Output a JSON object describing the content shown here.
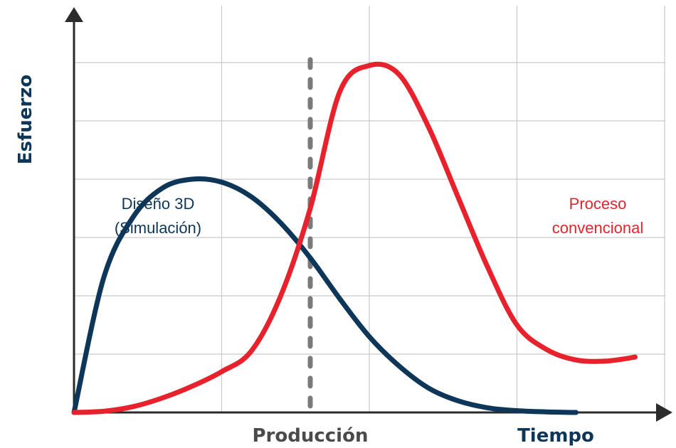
{
  "chart_data": {
    "type": "line",
    "title": "",
    "xlabel": "Tiempo",
    "ylabel": "Esfuerzo",
    "xlim": [
      0,
      10
    ],
    "ylim": [
      0,
      7
    ],
    "grid": true,
    "legend": "none",
    "marker": {
      "label": "Producción",
      "x": 4,
      "style": "dashed"
    },
    "series": [
      {
        "name": "Diseño 3D (Simulación)",
        "label_lines": [
          "Diseño 3D",
          "(Simulación)"
        ],
        "color": "#0d3658",
        "x": [
          0,
          0.5,
          1,
          1.5,
          2,
          2.5,
          3,
          3.5,
          4,
          4.5,
          5,
          5.5,
          6,
          6.5,
          7,
          7.5,
          8,
          8.5
        ],
        "y": [
          0,
          2.3,
          3.35,
          3.85,
          4.0,
          3.95,
          3.7,
          3.25,
          2.65,
          1.95,
          1.3,
          0.8,
          0.42,
          0.2,
          0.08,
          0.03,
          0.01,
          0.0
        ]
      },
      {
        "name": "Proceso convencional",
        "label_lines": [
          "Proceso",
          "convencional"
        ],
        "color": "#e8222c",
        "x": [
          0,
          0.5,
          1,
          1.5,
          2,
          2.5,
          3,
          3.5,
          4,
          4.5,
          5,
          5.5,
          6,
          6.5,
          7,
          7.5,
          8,
          8.5,
          9,
          9.5
        ],
        "y": [
          0,
          0.02,
          0.1,
          0.25,
          0.45,
          0.7,
          1.05,
          2.0,
          3.5,
          5.5,
          5.95,
          5.8,
          4.9,
          3.7,
          2.5,
          1.5,
          1.08,
          0.9,
          0.88,
          0.95
        ]
      }
    ]
  }
}
